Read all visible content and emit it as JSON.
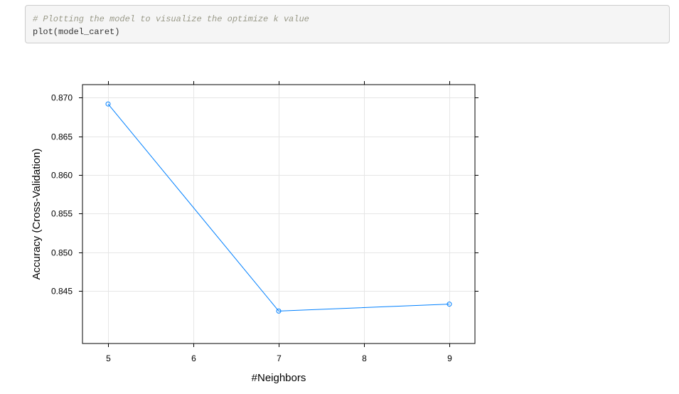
{
  "code": {
    "comment": "# Plotting the model to visualize the optimize k value",
    "command": "plot(model_caret)"
  },
  "chart_data": {
    "type": "line",
    "x": [
      5,
      7,
      9
    ],
    "y": [
      0.8692,
      0.8424,
      0.8433
    ],
    "xlabel": "#Neighbors",
    "ylabel": "Accuracy (Cross-Validation)",
    "xlim": [
      4.7,
      9.3
    ],
    "ylim": [
      0.8382,
      0.8717
    ],
    "xticks": [
      5,
      6,
      7,
      8,
      9
    ],
    "yticks": [
      0.845,
      0.85,
      0.855,
      0.86,
      0.865,
      0.87
    ],
    "ytick_labels": [
      "0.845",
      "0.850",
      "0.855",
      "0.860",
      "0.865",
      "0.870"
    ],
    "grid": true,
    "line_color": "#0080ff"
  }
}
